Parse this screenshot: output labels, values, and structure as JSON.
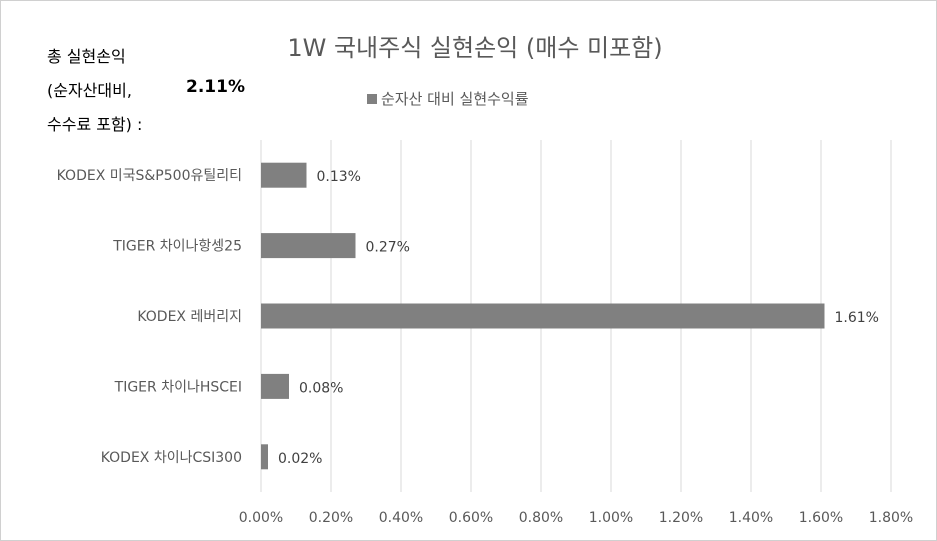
{
  "summary": {
    "line1": "총 실현손익",
    "line2": "(순자산대비,",
    "line3": "수수료 포함) :",
    "value": "2.11%"
  },
  "chart_data": {
    "type": "bar",
    "orientation": "horizontal",
    "title": "1W 국내주식 실현손익 (매수 미포함)",
    "categories": [
      "KODEX 미국S&P500유틸리티",
      "TIGER 차이나항셍25",
      "KODEX 레버리지",
      "TIGER 차이나HSCEI",
      "KODEX 차이나CSI300"
    ],
    "series": [
      {
        "name": "순자산 대비 실현수익률",
        "values": [
          0.13,
          0.27,
          1.61,
          0.08,
          0.02
        ],
        "color": "#808080"
      }
    ],
    "data_labels": [
      "0.13%",
      "0.27%",
      "1.61%",
      "0.08%",
      "0.02%"
    ],
    "xlim": [
      0,
      1.8
    ],
    "x_ticks": [
      "0.00%",
      "0.20%",
      "0.40%",
      "0.60%",
      "0.80%",
      "1.00%",
      "1.20%",
      "1.40%",
      "1.60%",
      "1.80%"
    ],
    "grid": true,
    "legend_position": "top"
  }
}
